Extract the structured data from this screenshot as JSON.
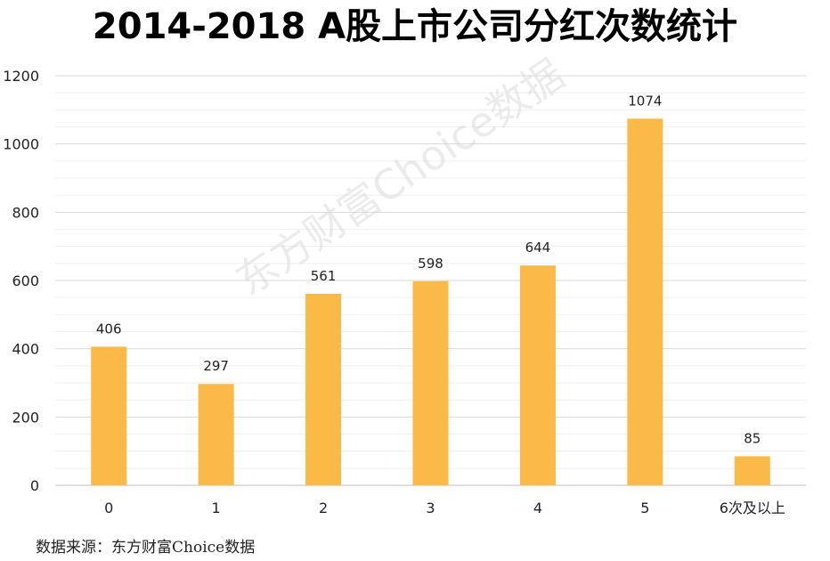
{
  "title": "2014-2018 A股上市公司分红次数统计",
  "source": "数据来源：东方财富Choice数据",
  "watermark": "东方财富Choice数据",
  "colors": {
    "bar": "#FBBA47",
    "grid": "#D9D9D9",
    "axis_text": "#222222"
  },
  "chart_data": {
    "type": "bar",
    "title": "2014-2018 A股上市公司分红次数统计",
    "categories": [
      "0",
      "1",
      "2",
      "3",
      "4",
      "5",
      "6次及以上"
    ],
    "values": [
      406,
      297,
      561,
      598,
      644,
      1074,
      85
    ],
    "xlabel": "",
    "ylabel": "",
    "ylim": [
      0,
      1200
    ],
    "yticks": [
      0,
      200,
      400,
      600,
      800,
      1000,
      1200
    ],
    "grid": true,
    "data_labels": true
  }
}
